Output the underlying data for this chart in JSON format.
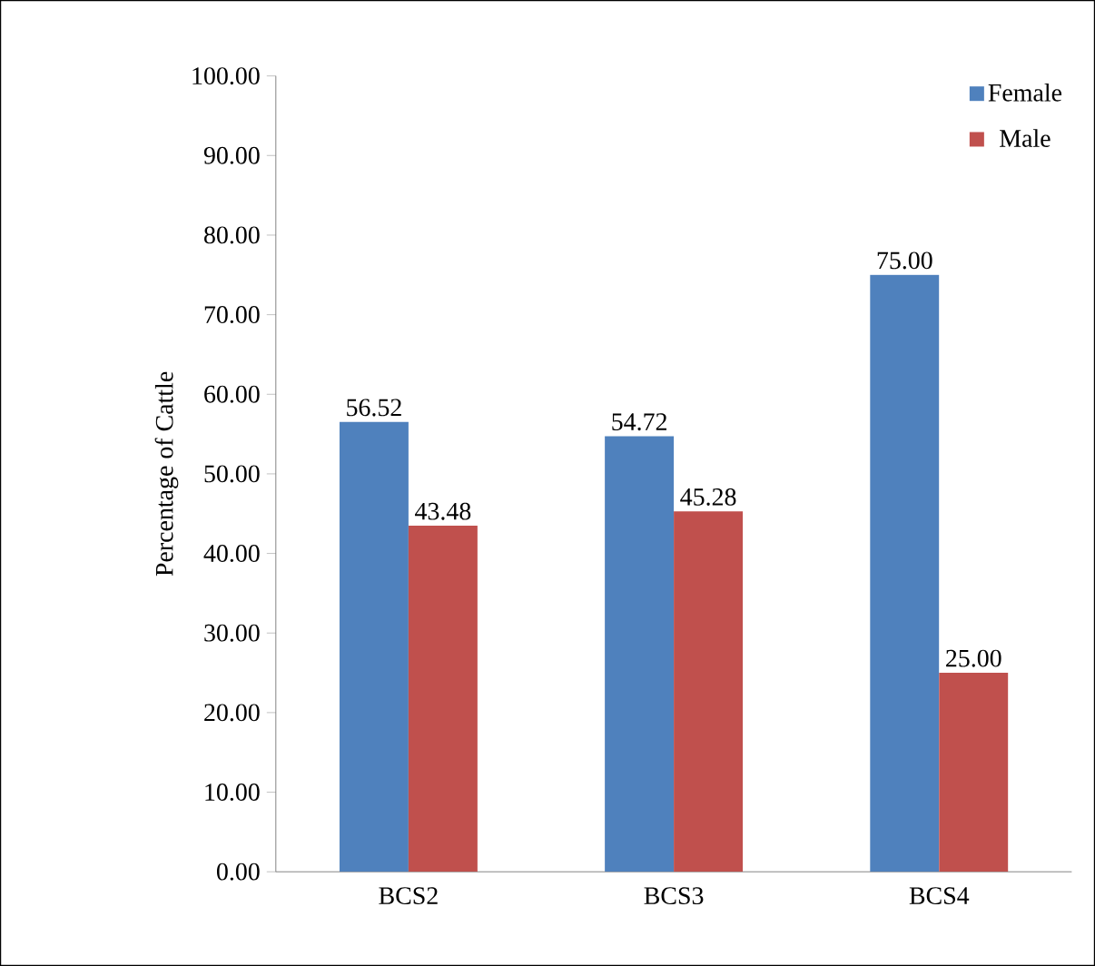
{
  "chart_data": {
    "type": "bar",
    "ylabel": "Percentage of Cattle",
    "categories": [
      "BCS2",
      "BCS3",
      "BCS4"
    ],
    "series": [
      {
        "name": "Female",
        "color": "#4f81bd",
        "values": [
          56.52,
          54.72,
          75.0
        ],
        "value_labels": [
          "56.52",
          "54.72",
          "75.00"
        ]
      },
      {
        "name": "Male",
        "color": "#c0504d",
        "values": [
          43.48,
          45.28,
          25.0
        ],
        "value_labels": [
          "43.48",
          "45.28",
          "25.00"
        ]
      }
    ],
    "ylim": [
      0,
      100
    ],
    "yticks": [
      {
        "value": 0,
        "label": "0.00"
      },
      {
        "value": 10,
        "label": "10.00"
      },
      {
        "value": 20,
        "label": "20.00"
      },
      {
        "value": 30,
        "label": "30.00"
      },
      {
        "value": 40,
        "label": "40.00"
      },
      {
        "value": 50,
        "label": "50.00"
      },
      {
        "value": 60,
        "label": "60.00"
      },
      {
        "value": 70,
        "label": "70.00"
      },
      {
        "value": 80,
        "label": "80.00"
      },
      {
        "value": 90,
        "label": "90.00"
      },
      {
        "value": 100,
        "label": "100.00"
      }
    ],
    "grid": false,
    "legend": "top right"
  }
}
